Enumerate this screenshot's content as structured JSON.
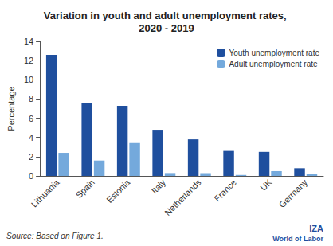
{
  "chart_data": {
    "type": "bar",
    "title": "Variation in youth and adult unemployment rates, 2020 - 2019",
    "ylabel": "Percentage",
    "categories": [
      "Lithuania",
      "Spain",
      "Estonia",
      "Italy",
      "Netherlands",
      "France",
      "UK",
      "Germany"
    ],
    "series": [
      {
        "name": "Youth unemployment rate",
        "color": "#1f4f9e",
        "values": [
          12.6,
          7.6,
          7.3,
          4.8,
          3.8,
          2.6,
          2.5,
          0.8
        ]
      },
      {
        "name": "Adult unemployment rate",
        "color": "#74a9dc",
        "values": [
          2.4,
          1.6,
          3.5,
          0.3,
          0.3,
          0.1,
          0.5,
          0.2
        ]
      }
    ],
    "ylim": [
      0,
      14
    ],
    "yticks": [
      0,
      2,
      4,
      6,
      8,
      10,
      12,
      14
    ],
    "grid": false,
    "legend": "upper right",
    "annotations": [
      "Source: Based on Figure 1.",
      "IZA",
      "World of Labor"
    ]
  }
}
